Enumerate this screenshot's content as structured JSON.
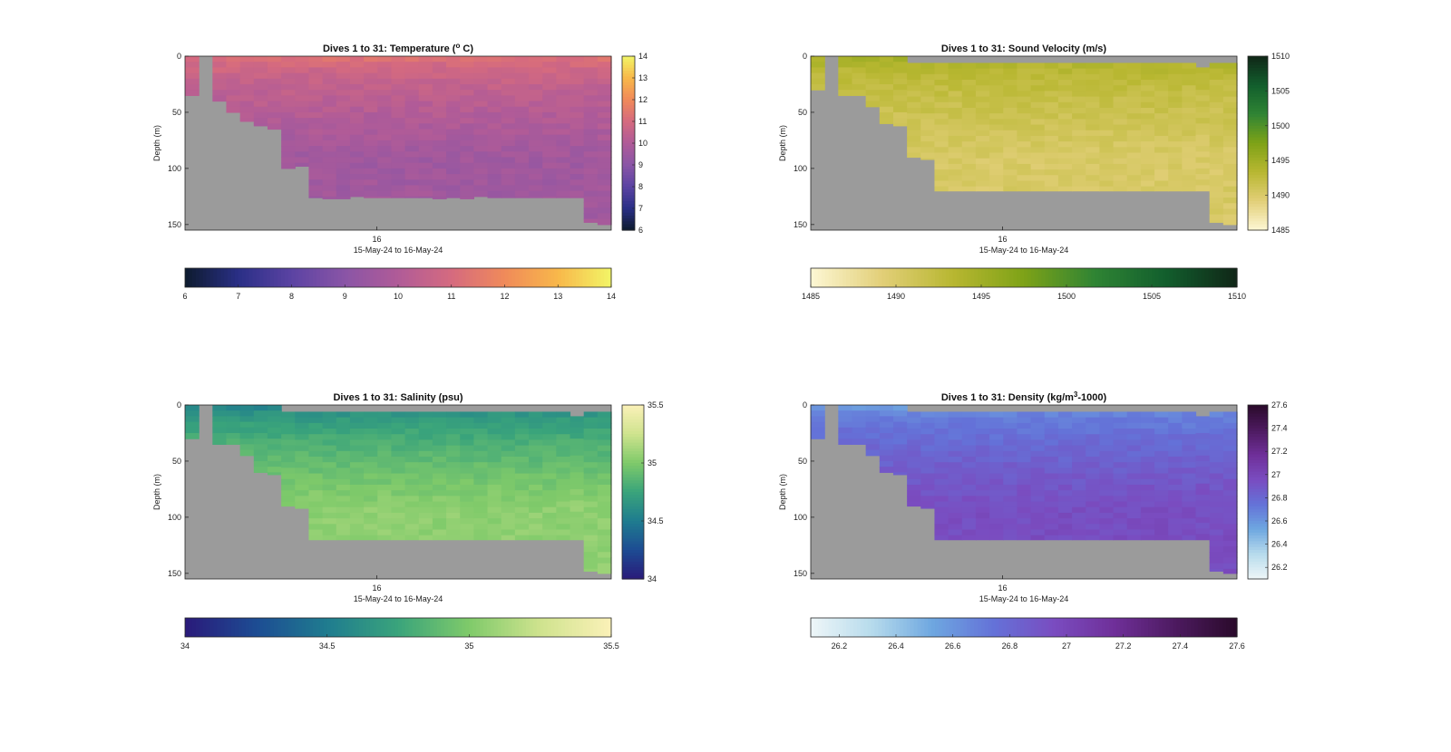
{
  "chart_data": [
    {
      "type": "heatmap",
      "title": "Dives 1 to 31: Temperature (",
      "title_sup": "o",
      "title_end": " C)",
      "ylabel": "Depth (m)",
      "xlabel": "15-May-24 to 16-May-24",
      "x_tick_labels": [
        "16"
      ],
      "x_tick_fracs": [
        0.45
      ],
      "y_ticks": [
        0,
        50,
        100,
        150
      ],
      "ylim": [
        0,
        155
      ],
      "n_columns": 31,
      "colorbar": {
        "range": [
          6,
          14
        ],
        "ticks": [
          "6",
          "7",
          "8",
          "9",
          "10",
          "11",
          "12",
          "13",
          "14"
        ],
        "colors": [
          "#0d1b2e",
          "#2a2f86",
          "#5b43a3",
          "#8a55a6",
          "#b05b98",
          "#d56a7f",
          "#f08a5a",
          "#f8b84a",
          "#f2f567"
        ]
      },
      "horizontal_colorbar_ticks": [
        "6",
        "7",
        "8",
        "9",
        "10",
        "11",
        "12",
        "13",
        "14"
      ],
      "surface_value": 11.2,
      "deep_value": 9.6,
      "max_depths": [
        35,
        0,
        40,
        50,
        58,
        62,
        65,
        100,
        98,
        126,
        127,
        127,
        125,
        126,
        126,
        126,
        126,
        126,
        127,
        126,
        127,
        125,
        126,
        126,
        126,
        126,
        126,
        126,
        126,
        148,
        150
      ],
      "min_depths": [
        0,
        0,
        0,
        0,
        0,
        0,
        0,
        0,
        0,
        0,
        0,
        0,
        0,
        0,
        0,
        0,
        0,
        0,
        0,
        0,
        0,
        0,
        0,
        0,
        0,
        0,
        0,
        0,
        0,
        0,
        0
      ],
      "nan_columns": [
        1
      ]
    },
    {
      "type": "heatmap",
      "title": "Dives 1 to 31: Sound Velocity (m/s)",
      "ylabel": "Depth (m)",
      "xlabel": "15-May-24 to 16-May-24",
      "x_tick_labels": [
        "16"
      ],
      "x_tick_fracs": [
        0.45
      ],
      "y_ticks": [
        0,
        50,
        100,
        150
      ],
      "ylim": [
        0,
        155
      ],
      "n_columns": 31,
      "colorbar": {
        "range": [
          1485,
          1510
        ],
        "ticks": [
          "1485",
          "1490",
          "1495",
          "1500",
          "1505",
          "1510"
        ],
        "colors": [
          "#fdf7d4",
          "#e2cf78",
          "#b8b731",
          "#7ea217",
          "#2f8434",
          "#125e2d",
          "#102617"
        ]
      },
      "horizontal_colorbar_ticks": [
        "1485",
        "1490",
        "1495",
        "1500",
        "1505",
        "1510"
      ],
      "surface_value": 1494.3,
      "deep_value": 1490.2,
      "max_depths": [
        30,
        0,
        35,
        35,
        45,
        60,
        62,
        90,
        92,
        120,
        120,
        120,
        120,
        120,
        120,
        120,
        120,
        120,
        120,
        120,
        120,
        120,
        120,
        120,
        120,
        120,
        120,
        120,
        120,
        148,
        150
      ],
      "min_depths": [
        0,
        0,
        0,
        0,
        0,
        0,
        0,
        6,
        6,
        6,
        6,
        6,
        6,
        6,
        6,
        6,
        6,
        6,
        6,
        6,
        6,
        6,
        6,
        6,
        6,
        6,
        6,
        6,
        10,
        6,
        6
      ],
      "nan_columns": [
        1
      ]
    },
    {
      "type": "heatmap",
      "title": "Dives 1 to 31: Salinity (psu)",
      "ylabel": "Depth (m)",
      "xlabel": "15-May-24 to 16-May-24",
      "x_tick_labels": [
        "16"
      ],
      "x_tick_fracs": [
        0.45
      ],
      "y_ticks": [
        0,
        50,
        100,
        150
      ],
      "ylim": [
        0,
        155
      ],
      "n_columns": 31,
      "colorbar": {
        "range": [
          34,
          35.5
        ],
        "ticks": [
          "34",
          "34.5",
          "35",
          "35.5"
        ],
        "colors": [
          "#2a1a7a",
          "#1d4c93",
          "#1f7c8f",
          "#3aa47b",
          "#7fca6a",
          "#cfe38e",
          "#fbf1b8"
        ]
      },
      "horizontal_colorbar_ticks": [
        "34",
        "34.5",
        "35",
        "35.5"
      ],
      "surface_value": 34.55,
      "deep_value": 35.05,
      "max_depths": [
        30,
        0,
        35,
        35,
        45,
        60,
        62,
        90,
        92,
        120,
        120,
        120,
        120,
        120,
        120,
        120,
        120,
        120,
        120,
        120,
        120,
        120,
        120,
        120,
        120,
        120,
        120,
        120,
        120,
        148,
        150
      ],
      "min_depths": [
        0,
        0,
        0,
        0,
        0,
        0,
        0,
        6,
        6,
        6,
        6,
        6,
        6,
        6,
        6,
        6,
        6,
        6,
        6,
        6,
        6,
        6,
        6,
        6,
        6,
        6,
        6,
        6,
        10,
        6,
        6
      ],
      "nan_columns": [
        1
      ]
    },
    {
      "type": "heatmap",
      "title": "Dives 1 to 31: Density (kg/m",
      "title_sup": "3",
      "title_end": "-1000)",
      "ylabel": "Depth (m)",
      "xlabel": "15-May-24 to 16-May-24",
      "x_tick_labels": [
        "16"
      ],
      "x_tick_fracs": [
        0.45
      ],
      "y_ticks": [
        0,
        50,
        100,
        150
      ],
      "ylim": [
        0,
        155
      ],
      "n_columns": 31,
      "colorbar": {
        "range": [
          26.1,
          27.6
        ],
        "ticks": [
          "26.2",
          "26.4",
          "26.6",
          "26.8",
          "27",
          "27.2",
          "27.4",
          "27.6"
        ],
        "tick_values": [
          26.2,
          26.4,
          26.6,
          26.8,
          27.0,
          27.2,
          27.4,
          27.6
        ],
        "colors": [
          "#eef6f8",
          "#b7dbec",
          "#6ea7e0",
          "#6472d8",
          "#7a4cc0",
          "#6f2f98",
          "#4c1a5f",
          "#2a0a2a"
        ]
      },
      "horizontal_colorbar_ticks": [
        "26.2",
        "26.4",
        "26.6",
        "26.8",
        "27",
        "27.2",
        "27.4",
        "27.6"
      ],
      "surface_value": 26.6,
      "deep_value": 26.95,
      "max_depths": [
        30,
        0,
        35,
        35,
        45,
        60,
        62,
        90,
        92,
        120,
        120,
        120,
        120,
        120,
        120,
        120,
        120,
        120,
        120,
        120,
        120,
        120,
        120,
        120,
        120,
        120,
        120,
        120,
        120,
        148,
        150
      ],
      "min_depths": [
        0,
        0,
        0,
        0,
        0,
        0,
        0,
        6,
        6,
        6,
        6,
        6,
        6,
        6,
        6,
        6,
        6,
        6,
        6,
        6,
        6,
        6,
        6,
        6,
        6,
        6,
        6,
        6,
        10,
        6,
        6
      ],
      "nan_columns": [
        1
      ]
    }
  ]
}
